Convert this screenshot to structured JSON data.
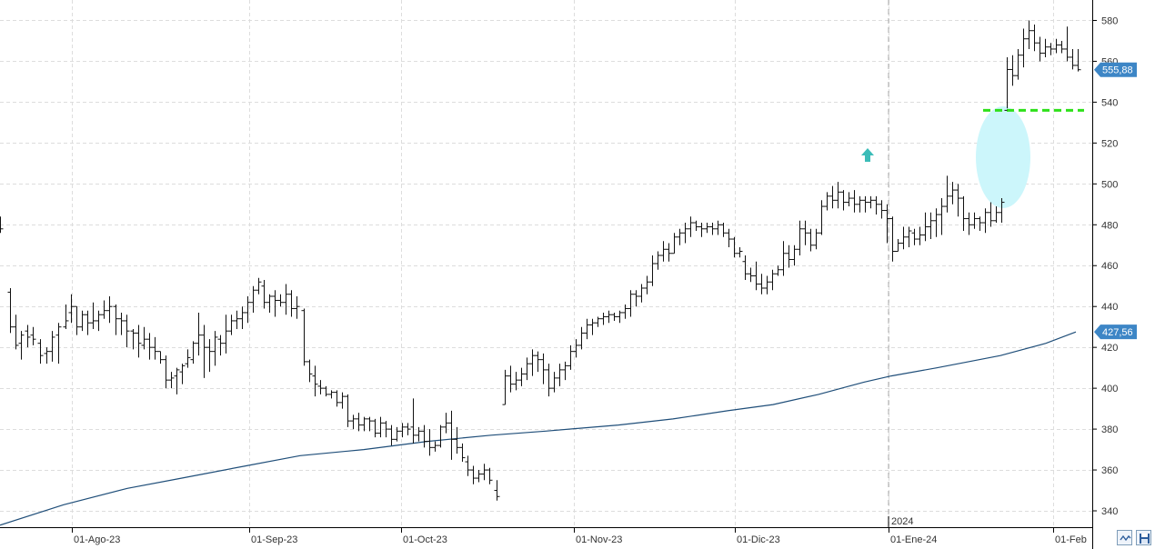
{
  "chart_data": {
    "type": "ohlc",
    "year_marker": "2024",
    "y_axis": {
      "min": 332,
      "max": 590,
      "ticks": [
        340,
        360,
        380,
        400,
        420,
        440,
        460,
        480,
        500,
        520,
        540,
        560,
        580
      ]
    },
    "x_axis": {
      "ticks": [
        "01-Ago-23",
        "01-Sep-23",
        "01-Oct-23",
        "01-Nov-23",
        "01-Dic-23",
        "01-Ene-24",
        "01-Feb"
      ]
    },
    "price_tags": [
      {
        "value": 555.88,
        "label": "555,88",
        "color": "#3d86c6"
      },
      {
        "value": 427.56,
        "label": "427,56",
        "color": "#3d86c6"
      }
    ],
    "support_level": {
      "value": 536,
      "color": "#2ee01a"
    },
    "moving_average": {
      "color": "#1f4e79",
      "points": [
        [
          0,
          333
        ],
        [
          70,
          343
        ],
        [
          140,
          351
        ],
        [
          200,
          356
        ],
        [
          270,
          362
        ],
        [
          330,
          367
        ],
        [
          400,
          370
        ],
        [
          470,
          374
        ],
        [
          540,
          377
        ],
        [
          600,
          379
        ],
        [
          680,
          382
        ],
        [
          740,
          385
        ],
        [
          800,
          389
        ],
        [
          850,
          392
        ],
        [
          900,
          397
        ],
        [
          950,
          403
        ],
        [
          980,
          406
        ],
        [
          1030,
          410
        ],
        [
          1100,
          416
        ],
        [
          1150,
          422
        ],
        [
          1183,
          427.56
        ]
      ]
    },
    "bars": [
      [
        0,
        480,
        484,
        476,
        478
      ],
      [
        11,
        447,
        449,
        427,
        430
      ],
      [
        17,
        430,
        436,
        419,
        421
      ],
      [
        23,
        422,
        428,
        414,
        426
      ],
      [
        30,
        428,
        431,
        420,
        425
      ],
      [
        36,
        426,
        430,
        421,
        424
      ],
      [
        44,
        422,
        424,
        412,
        416
      ],
      [
        51,
        417,
        420,
        412,
        418
      ],
      [
        57,
        418,
        428,
        413,
        425
      ],
      [
        64,
        426,
        432,
        412,
        430
      ],
      [
        72,
        430,
        441,
        429,
        433
      ],
      [
        78,
        437,
        446,
        432,
        440
      ],
      [
        84,
        440,
        440,
        426,
        430
      ],
      [
        90,
        430,
        438,
        428,
        436
      ],
      [
        96,
        436,
        438,
        426,
        432
      ],
      [
        102,
        432,
        442,
        429,
        433
      ],
      [
        108,
        433,
        438,
        428,
        436
      ],
      [
        114,
        436,
        443,
        434,
        438
      ],
      [
        120,
        438,
        445,
        432,
        440
      ],
      [
        127,
        440,
        441,
        426,
        434
      ],
      [
        133,
        434,
        437,
        426,
        433
      ],
      [
        139,
        433,
        436,
        420,
        428
      ],
      [
        146,
        428,
        429,
        419,
        427
      ],
      [
        152,
        427,
        431,
        415,
        422
      ],
      [
        158,
        421,
        430,
        419,
        424
      ],
      [
        164,
        424,
        427,
        414,
        420
      ],
      [
        170,
        420,
        425,
        414,
        418
      ],
      [
        176,
        418,
        418,
        412,
        414
      ],
      [
        182,
        414,
        416,
        400,
        404
      ],
      [
        188,
        404,
        408,
        400,
        405
      ],
      [
        194,
        406,
        410,
        397,
        409
      ],
      [
        200,
        408,
        412,
        402,
        411
      ],
      [
        206,
        412,
        419,
        410,
        415
      ],
      [
        212,
        414,
        423,
        412,
        422
      ],
      [
        218,
        422,
        437,
        416,
        426
      ],
      [
        224,
        426,
        431,
        405,
        420
      ],
      [
        230,
        420,
        424,
        408,
        418
      ],
      [
        236,
        418,
        428,
        411,
        425
      ],
      [
        242,
        424,
        426,
        416,
        422
      ],
      [
        248,
        422,
        436,
        417,
        428
      ],
      [
        254,
        428,
        436,
        426,
        433
      ],
      [
        260,
        433,
        438,
        429,
        434
      ],
      [
        266,
        434,
        440,
        429,
        437
      ],
      [
        272,
        437,
        445,
        432,
        442
      ],
      [
        278,
        442,
        450,
        437,
        448
      ],
      [
        284,
        448,
        454,
        446,
        452
      ],
      [
        290,
        450,
        453,
        439,
        442
      ],
      [
        296,
        442,
        446,
        437,
        445
      ],
      [
        302,
        445,
        448,
        435,
        443
      ],
      [
        308,
        443,
        446,
        440,
        442
      ],
      [
        314,
        442,
        451,
        436,
        446
      ],
      [
        320,
        446,
        448,
        435,
        439
      ],
      [
        326,
        439,
        445,
        434,
        440
      ],
      [
        334,
        438,
        439,
        411,
        413
      ],
      [
        340,
        413,
        414,
        403,
        407
      ],
      [
        346,
        406,
        411,
        396,
        402
      ],
      [
        352,
        401,
        404,
        397,
        400
      ],
      [
        358,
        400,
        401,
        396,
        397
      ],
      [
        364,
        397,
        399,
        395,
        398
      ],
      [
        370,
        398,
        399,
        391,
        393
      ],
      [
        376,
        393,
        398,
        390,
        396
      ],
      [
        382,
        396,
        397,
        381,
        384
      ],
      [
        388,
        384,
        387,
        380,
        385
      ],
      [
        394,
        385,
        388,
        379,
        382
      ],
      [
        400,
        382,
        386,
        379,
        385
      ],
      [
        406,
        385,
        386,
        379,
        384
      ],
      [
        412,
        384,
        385,
        376,
        378
      ],
      [
        418,
        378,
        386,
        376,
        383
      ],
      [
        424,
        383,
        384,
        376,
        380
      ],
      [
        430,
        380,
        382,
        372,
        375
      ],
      [
        436,
        375,
        381,
        374,
        379
      ],
      [
        442,
        379,
        383,
        376,
        381
      ],
      [
        448,
        381,
        383,
        377,
        380
      ],
      [
        454,
        381,
        395,
        373,
        377
      ],
      [
        460,
        377,
        381,
        374,
        379
      ],
      [
        466,
        379,
        382,
        371,
        374
      ],
      [
        472,
        374,
        380,
        367,
        371
      ],
      [
        478,
        371,
        374,
        369,
        372
      ],
      [
        484,
        372,
        382,
        371,
        381
      ],
      [
        490,
        381,
        388,
        378,
        383
      ],
      [
        496,
        383,
        389,
        365,
        375
      ],
      [
        502,
        375,
        381,
        368,
        371
      ],
      [
        508,
        371,
        373,
        364,
        366
      ],
      [
        514,
        364,
        367,
        357,
        360
      ],
      [
        520,
        360,
        362,
        353,
        356
      ],
      [
        526,
        356,
        360,
        354,
        358
      ],
      [
        532,
        358,
        363,
        355,
        360
      ],
      [
        538,
        360,
        361,
        353,
        355
      ],
      [
        546,
        350,
        355,
        345,
        347
      ],
      [
        555,
        392,
        409,
        392,
        406
      ],
      [
        561,
        406,
        411,
        398,
        402
      ],
      [
        567,
        402,
        408,
        399,
        404
      ],
      [
        573,
        404,
        410,
        401,
        407
      ],
      [
        579,
        407,
        415,
        404,
        412
      ],
      [
        585,
        412,
        419,
        406,
        416
      ],
      [
        591,
        416,
        418,
        408,
        414
      ],
      [
        597,
        414,
        417,
        402,
        409
      ],
      [
        603,
        409,
        412,
        396,
        400
      ],
      [
        609,
        400,
        408,
        398,
        405
      ],
      [
        615,
        405,
        412,
        401,
        409
      ],
      [
        621,
        409,
        413,
        404,
        411
      ],
      [
        627,
        411,
        421,
        409,
        418
      ],
      [
        633,
        418,
        424,
        415,
        421
      ],
      [
        639,
        421,
        430,
        419,
        427
      ],
      [
        645,
        427,
        434,
        424,
        431
      ],
      [
        651,
        431,
        434,
        426,
        432
      ],
      [
        657,
        432,
        435,
        430,
        434
      ],
      [
        663,
        434,
        437,
        431,
        435
      ],
      [
        669,
        435,
        438,
        432,
        436
      ],
      [
        675,
        436,
        437,
        433,
        435
      ],
      [
        681,
        435,
        438,
        432,
        437
      ],
      [
        687,
        437,
        441,
        434,
        439
      ],
      [
        693,
        439,
        448,
        435,
        446
      ],
      [
        699,
        446,
        448,
        440,
        445
      ],
      [
        705,
        445,
        451,
        442,
        449
      ],
      [
        711,
        449,
        455,
        446,
        452
      ],
      [
        717,
        452,
        465,
        450,
        461
      ],
      [
        723,
        461,
        467,
        458,
        465
      ],
      [
        729,
        465,
        472,
        462,
        468
      ],
      [
        735,
        468,
        471,
        462,
        466
      ],
      [
        741,
        466,
        476,
        466,
        474
      ],
      [
        747,
        474,
        478,
        470,
        476
      ],
      [
        753,
        476,
        481,
        471,
        478
      ],
      [
        759,
        478,
        484,
        474,
        481
      ],
      [
        765,
        481,
        482,
        477,
        479
      ],
      [
        771,
        479,
        481,
        474,
        478
      ],
      [
        777,
        478,
        481,
        476,
        479
      ],
      [
        783,
        479,
        481,
        475,
        478
      ],
      [
        789,
        478,
        482,
        475,
        480
      ],
      [
        795,
        480,
        481,
        474,
        476
      ],
      [
        801,
        476,
        478,
        469,
        473
      ],
      [
        807,
        473,
        474,
        464,
        466
      ],
      [
        813,
        466,
        469,
        464,
        467
      ],
      [
        819,
        462,
        465,
        453,
        456
      ],
      [
        825,
        456,
        459,
        452,
        455
      ],
      [
        831,
        455,
        462,
        448,
        451
      ],
      [
        837,
        451,
        456,
        446,
        449
      ],
      [
        843,
        449,
        455,
        446,
        452
      ],
      [
        849,
        452,
        458,
        448,
        456
      ],
      [
        855,
        456,
        460,
        455,
        458
      ],
      [
        861,
        458,
        472,
        455,
        466
      ],
      [
        867,
        466,
        470,
        459,
        463
      ],
      [
        873,
        463,
        470,
        460,
        468
      ],
      [
        879,
        468,
        482,
        465,
        478
      ],
      [
        885,
        478,
        482,
        470,
        476
      ],
      [
        891,
        476,
        478,
        467,
        470
      ],
      [
        897,
        470,
        478,
        468,
        476
      ],
      [
        903,
        476,
        492,
        475,
        489
      ],
      [
        909,
        489,
        496,
        487,
        494
      ],
      [
        915,
        494,
        499,
        488,
        492
      ],
      [
        921,
        492,
        501,
        488,
        496
      ],
      [
        927,
        496,
        497,
        487,
        491
      ],
      [
        933,
        491,
        496,
        489,
        493
      ],
      [
        939,
        493,
        497,
        486,
        490
      ],
      [
        945,
        490,
        494,
        486,
        492
      ],
      [
        951,
        492,
        494,
        486,
        491
      ],
      [
        957,
        491,
        494,
        488,
        492
      ],
      [
        963,
        492,
        494,
        485,
        490
      ],
      [
        969,
        490,
        492,
        483,
        487
      ],
      [
        975,
        487,
        490,
        471,
        483
      ],
      [
        981,
        483,
        484,
        462,
        467
      ],
      [
        987,
        467,
        473,
        467,
        471
      ],
      [
        993,
        471,
        479,
        468,
        474
      ],
      [
        999,
        474,
        479,
        469,
        477
      ],
      [
        1005,
        476,
        478,
        470,
        473
      ],
      [
        1011,
        473,
        479,
        470,
        475
      ],
      [
        1017,
        475,
        486,
        472,
        479
      ],
      [
        1023,
        479,
        486,
        473,
        482
      ],
      [
        1029,
        482,
        488,
        474,
        485
      ],
      [
        1035,
        485,
        493,
        475,
        489
      ],
      [
        1041,
        489,
        504,
        486,
        494
      ],
      [
        1047,
        494,
        501,
        490,
        497
      ],
      [
        1053,
        497,
        500,
        484,
        493
      ],
      [
        1059,
        493,
        494,
        477,
        483
      ],
      [
        1065,
        483,
        486,
        475,
        480
      ],
      [
        1071,
        480,
        486,
        478,
        483
      ],
      [
        1077,
        483,
        484,
        477,
        481
      ],
      [
        1083,
        481,
        488,
        476,
        486
      ],
      [
        1089,
        486,
        491,
        479,
        482
      ],
      [
        1095,
        482,
        489,
        481,
        486
      ],
      [
        1101,
        486,
        493,
        481,
        491
      ],
      [
        1107,
        536,
        562,
        537,
        556
      ],
      [
        1113,
        556,
        563,
        548,
        553
      ],
      [
        1119,
        553,
        566,
        551,
        563
      ],
      [
        1125,
        563,
        576,
        557,
        571
      ],
      [
        1131,
        571,
        580,
        566,
        575
      ],
      [
        1137,
        575,
        578,
        565,
        569
      ],
      [
        1143,
        569,
        572,
        560,
        564
      ],
      [
        1149,
        564,
        571,
        562,
        567
      ],
      [
        1155,
        567,
        569,
        563,
        566
      ],
      [
        1161,
        566,
        571,
        564,
        568
      ],
      [
        1167,
        568,
        570,
        564,
        566
      ],
      [
        1173,
        566,
        577,
        560,
        562
      ],
      [
        1179,
        562,
        566,
        556,
        558
      ],
      [
        1185,
        558,
        566,
        555,
        555.88
      ]
    ]
  }
}
